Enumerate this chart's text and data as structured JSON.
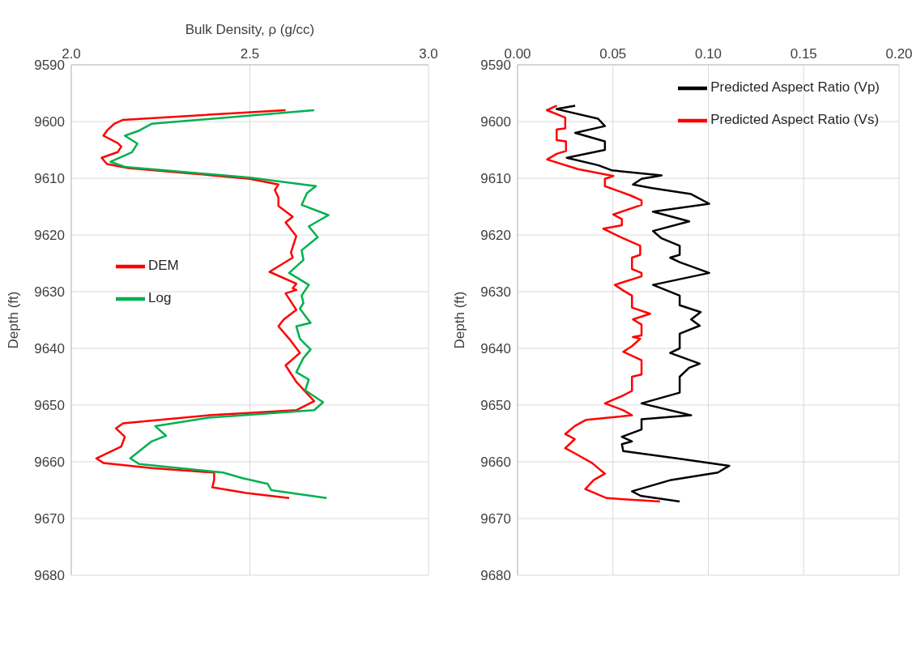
{
  "chart_data": [
    {
      "type": "line",
      "xlabel": "Bulk Density, ρ (g/cc)",
      "ylabel": "Depth (ft)",
      "xlim": [
        2.0,
        3.0
      ],
      "xticks": [
        {
          "value": 2.0,
          "label": "2.0"
        },
        {
          "value": 2.5,
          "label": "2.5"
        },
        {
          "value": 3.0,
          "label": "3.0"
        }
      ],
      "ylim": [
        9680,
        9590
      ],
      "yticks": [
        9590,
        9600,
        9610,
        9620,
        9630,
        9640,
        9650,
        9660,
        9670,
        9680
      ],
      "grid": true,
      "legend": "left",
      "series": [
        {
          "name": "DEM",
          "color": "#ff0000",
          "x": [
            2.6,
            2.145,
            2.12,
            2.1,
            2.09,
            2.13,
            2.14,
            2.13,
            2.085,
            2.1,
            2.16,
            2.345,
            2.5,
            2.58,
            2.57,
            2.58,
            2.58,
            2.62,
            2.6,
            2.63,
            2.615,
            2.62,
            2.555,
            2.63,
            2.62,
            2.63,
            2.6,
            2.63,
            2.595,
            2.58,
            2.61,
            2.64,
            2.6,
            2.63,
            2.68,
            2.63,
            2.385,
            2.145,
            2.125,
            2.15,
            2.14,
            2.07,
            2.09,
            2.225,
            2.4,
            2.4,
            2.395,
            2.49,
            2.61
          ],
          "values": [
            9598.0,
            9599.7,
            9600.4,
            9601.6,
            9602.5,
            9603.8,
            9604.4,
            9605.4,
            9606.4,
            9607.5,
            9608.2,
            9609.2,
            9610.1,
            9611.1,
            9612.1,
            9613.4,
            9614.9,
            9616.8,
            9617.8,
            9620.2,
            9623.1,
            9624.0,
            9626.5,
            9628.6,
            9629.4,
            9629.7,
            9630.3,
            9633.2,
            9634.9,
            9636.1,
            9638.3,
            9640.8,
            9643.0,
            9645.9,
            9649.3,
            9650.9,
            9651.8,
            9653.2,
            9654.1,
            9655.6,
            9657.3,
            9659.4,
            9660.2,
            9661.1,
            9661.9,
            9663.2,
            9664.5,
            9665.5,
            9666.4
          ]
        },
        {
          "name": "Log",
          "color": "#00b050",
          "x": [
            2.68,
            2.225,
            2.19,
            2.15,
            2.185,
            2.17,
            2.11,
            2.15,
            2.5,
            2.685,
            2.66,
            2.645,
            2.72,
            2.665,
            2.69,
            2.645,
            2.65,
            2.61,
            2.665,
            2.645,
            2.65,
            2.64,
            2.67,
            2.63,
            2.64,
            2.67,
            2.65,
            2.63,
            2.665,
            2.655,
            2.705,
            2.68,
            2.385,
            2.235,
            2.265,
            2.225,
            2.165,
            2.19,
            2.425,
            2.48,
            2.55,
            2.56,
            2.715
          ],
          "values": [
            9598.0,
            9600.4,
            9601.6,
            9602.5,
            9603.9,
            9605.4,
            9607.1,
            9608.0,
            9609.9,
            9611.4,
            9612.6,
            9614.7,
            9616.5,
            9618.5,
            9620.4,
            9622.7,
            9624.4,
            9626.7,
            9628.8,
            9630.7,
            9632.0,
            9633.0,
            9635.5,
            9636.1,
            9638.3,
            9640.2,
            9641.7,
            9644.2,
            9645.5,
            9647.4,
            9649.5,
            9650.9,
            9652.2,
            9653.7,
            9655.4,
            9656.4,
            9659.4,
            9660.4,
            9661.9,
            9662.9,
            9663.9,
            9665.0,
            9666.4
          ]
        }
      ]
    },
    {
      "type": "line",
      "ylabel": "Depth (ft)",
      "xlim": [
        0.0,
        0.2
      ],
      "xticks": [
        {
          "value": 0,
          "label": "0.00"
        },
        {
          "value": 0.05,
          "label": "0.05"
        },
        {
          "value": 0.1,
          "label": "0.10"
        },
        {
          "value": 0.15,
          "label": "0.15"
        },
        {
          "value": 0.2,
          "label": "0.20"
        }
      ],
      "ylim": [
        9680,
        9590
      ],
      "yticks": [
        9590,
        9600,
        9610,
        9620,
        9630,
        9640,
        9650,
        9660,
        9670,
        9680
      ],
      "grid": true,
      "legend": "top right",
      "series": [
        {
          "name": "Predicted Aspect Ratio (Vs)",
          "color": "#ff0000",
          "x": [
            0.0206,
            0.0154,
            0.025,
            0.025,
            0.0205,
            0.0205,
            0.0254,
            0.0254,
            0.0205,
            0.0155,
            0.0317,
            0.0502,
            0.0458,
            0.0458,
            0.059,
            0.065,
            0.065,
            0.0502,
            0.0547,
            0.0547,
            0.045,
            0.0554,
            0.0643,
            0.0643,
            0.06,
            0.06,
            0.065,
            0.065,
            0.051,
            0.0554,
            0.06,
            0.06,
            0.0695,
            0.0605,
            0.065,
            0.065,
            0.0605,
            0.0643,
            0.06,
            0.0554,
            0.065,
            0.065,
            0.06,
            0.06,
            0.0547,
            0.0458,
            0.0554,
            0.06,
            0.036,
            0.03,
            0.025,
            0.03,
            0.025,
            0.03,
            0.039,
            0.0458,
            0.04,
            0.0355,
            0.0467,
            0.0747
          ],
          "values": [
            9597.2,
            9598.0,
            9599.3,
            9601.2,
            9601.4,
            9603.3,
            9603.5,
            9605.2,
            9605.7,
            9606.7,
            9608.4,
            9609.6,
            9610.1,
            9611.4,
            9613.0,
            9613.9,
            9614.7,
            9616.4,
            9617.2,
            9618.3,
            9618.9,
            9620.6,
            9621.9,
            9623.5,
            9624.0,
            9626.0,
            9626.7,
            9627.3,
            9628.8,
            9629.8,
            9630.7,
            9632.8,
            9633.9,
            9634.9,
            9635.8,
            9637.7,
            9638.0,
            9638.3,
            9639.6,
            9640.6,
            9642.1,
            9644.6,
            9645.0,
            9647.5,
            9648.4,
            9649.7,
            9650.9,
            9651.8,
            9652.6,
            9653.7,
            9655.1,
            9656.0,
            9657.6,
            9658.5,
            9660.2,
            9662.1,
            9663.2,
            9664.8,
            9666.4,
            9667.0
          ]
        },
        {
          "name": "Predicted Aspect Ratio (Vp)",
          "color": "#000000",
          "x": [
            0.0302,
            0.0205,
            0.0422,
            0.0458,
            0.0302,
            0.0458,
            0.0458,
            0.0258,
            0.0422,
            0.0493,
            0.0755,
            0.065,
            0.0605,
            0.07,
            0.091,
            0.1005,
            0.071,
            0.09,
            0.071,
            0.0755,
            0.085,
            0.085,
            0.08,
            0.085,
            0.1005,
            0.071,
            0.085,
            0.085,
            0.096,
            0.091,
            0.0955,
            0.085,
            0.085,
            0.08,
            0.0955,
            0.09,
            0.085,
            0.085,
            0.065,
            0.091,
            0.065,
            0.065,
            0.0547,
            0.06,
            0.0547,
            0.0554,
            0.0835,
            0.111,
            0.105,
            0.0805,
            0.06,
            0.0645,
            0.085
          ],
          "values": [
            9597.2,
            9597.8,
            9599.5,
            9600.8,
            9602.0,
            9603.5,
            9605.0,
            9606.4,
            9607.7,
            9608.6,
            9609.5,
            9610.1,
            9611.1,
            9611.7,
            9612.8,
            9614.5,
            9615.9,
            9617.6,
            9619.3,
            9620.6,
            9621.9,
            9623.5,
            9624.0,
            9624.8,
            9626.7,
            9628.8,
            9630.7,
            9632.4,
            9633.6,
            9634.9,
            9636.0,
            9637.4,
            9640.0,
            9640.8,
            9642.7,
            9643.4,
            9645.0,
            9647.8,
            9649.7,
            9651.8,
            9652.5,
            9654.3,
            9655.6,
            9656.4,
            9656.9,
            9658.1,
            9659.4,
            9660.7,
            9661.9,
            9663.2,
            9665.2,
            9666.0,
            9667.0
          ]
        }
      ]
    }
  ]
}
